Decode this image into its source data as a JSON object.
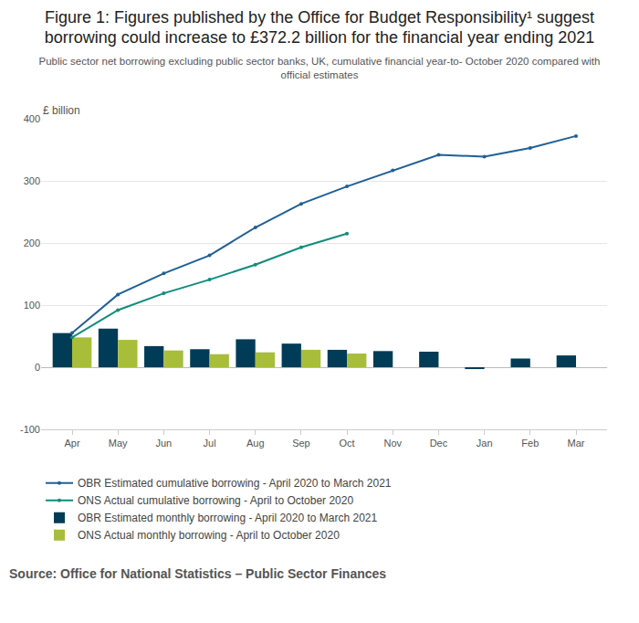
{
  "chart_data": {
    "type": "bar",
    "title": "Figure 1: Figures published by the Office for Budget Responsibility¹ suggest borrowing could increase to £372.2 billion for the financial year ending 2021",
    "subtitle": "Public sector net borrowing excluding public sector banks, UK, cumulative financial year-to- October 2020 compared with official estimates",
    "y_label": "£ billion",
    "source": "Source: Office for National Statistics – Public Sector Finances",
    "categories": [
      "Apr",
      "May",
      "Jun",
      "Jul",
      "Aug",
      "Sep",
      "Oct",
      "Nov",
      "Dec",
      "Jan",
      "Feb",
      "Mar"
    ],
    "series": [
      {
        "name": "OBR Estimated cumulative borrowing - April 2020 to March 2021",
        "type": "line",
        "marker": "circle",
        "color": "#206095",
        "values": [
          55,
          117,
          151,
          180,
          225,
          263,
          291,
          317,
          342,
          339,
          353,
          372.2
        ]
      },
      {
        "name": "ONS Actual cumulative borrowing - April to October 2020",
        "type": "line",
        "marker": "circle",
        "color": "#118c7b",
        "values": [
          48,
          92,
          119,
          141,
          165,
          193,
          215,
          null,
          null,
          null,
          null,
          null
        ]
      },
      {
        "name": "OBR Estimated monthly borrowing - April 2020 to March 2021",
        "type": "bar",
        "color": "#003c57",
        "values": [
          55,
          62,
          34,
          29,
          45,
          38,
          28,
          26,
          25,
          -3,
          14,
          19
        ]
      },
      {
        "name": "ONS Actual monthly borrowing - April to October 2020",
        "type": "bar",
        "color": "#a8bd3a",
        "values": [
          48,
          44,
          27,
          21,
          24,
          28,
          22,
          null,
          null,
          null,
          null,
          null
        ]
      }
    ],
    "ylim": [
      -100,
      400
    ],
    "yticks": [
      -100,
      0,
      100,
      200,
      300,
      400
    ],
    "grid": true,
    "legend": "bottom"
  }
}
